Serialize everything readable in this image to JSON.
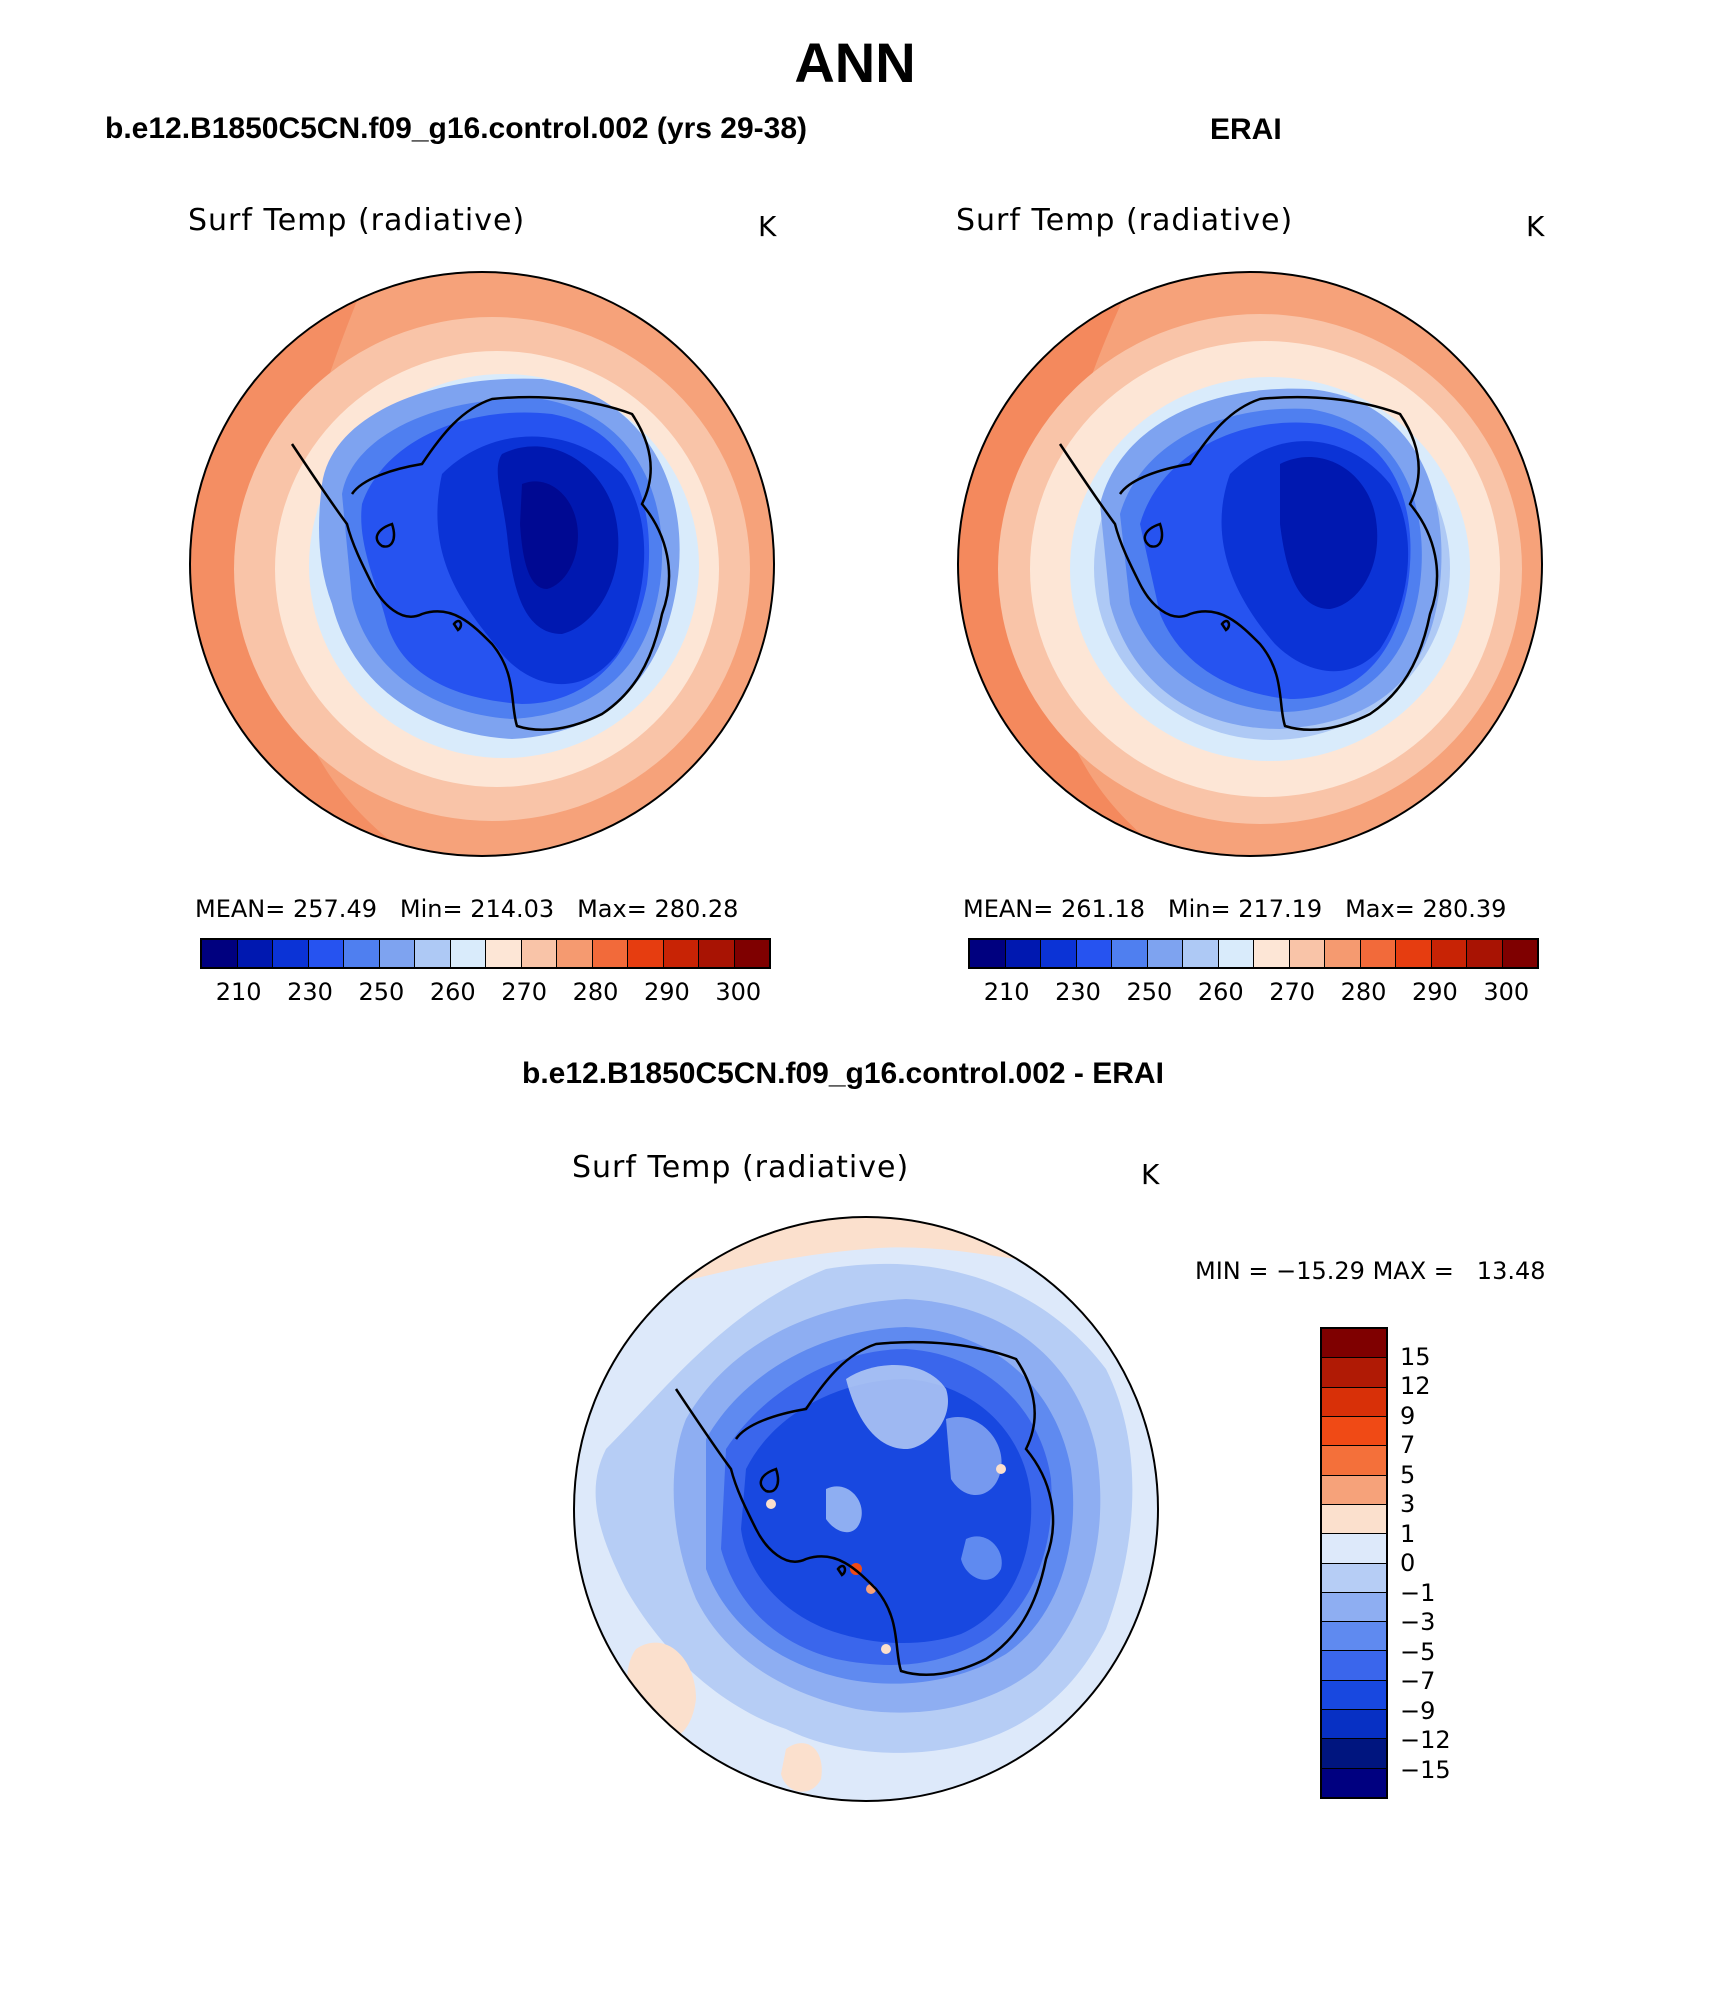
{
  "figure": {
    "season": "ANN",
    "panels": {
      "model": {
        "case_title": "b.e12.B1850C5CN.f09_g16.control.002 (yrs 29-38)",
        "variable": "Surf Temp (radiative)",
        "units": "K",
        "stats": {
          "mean_label": "MEAN=",
          "mean": "257.49",
          "min_label": "Min=",
          "min": "214.03",
          "max_label": "Max=",
          "max": "280.28"
        }
      },
      "obs": {
        "case_title": "ERAI",
        "variable": "Surf Temp (radiative)",
        "units": "K",
        "stats": {
          "mean_label": "MEAN=",
          "mean": "261.18",
          "min_label": "Min=",
          "min": "217.19",
          "max_label": "Max=",
          "max": "280.39"
        }
      },
      "diff": {
        "case_title": "b.e12.B1850C5CN.f09_g16.control.002 - ERAI",
        "variable": "Surf Temp (radiative)",
        "units": "K",
        "stats": {
          "min_label": "MIN =",
          "min": "−15.29",
          "max_label": "MAX =",
          "max": "13.48"
        }
      }
    },
    "abs_colorbar": {
      "colors": [
        "#00007f",
        "#0018b0",
        "#0b33d6",
        "#2653f0",
        "#4f7ff0",
        "#7ea3f0",
        "#aec9f5",
        "#d9ebfb",
        "#fde6d6",
        "#f9c4a8",
        "#f59a70",
        "#f26a3a",
        "#e63d10",
        "#c82305",
        "#a81303",
        "#7f0000"
      ],
      "tick_labels": [
        "210",
        "230",
        "250",
        "260",
        "270",
        "280",
        "290",
        "300"
      ]
    },
    "diff_colorbar": {
      "colors": [
        "#7f0000",
        "#b01a05",
        "#d83008",
        "#f04a15",
        "#f4703a",
        "#f6a27a",
        "#fbe0cd",
        "#dde9fa",
        "#b6cdf5",
        "#8eaef2",
        "#5f8af0",
        "#3a66ec",
        "#1848e0",
        "#0730c4",
        "#00157f",
        "#000080"
      ],
      "tick_labels": [
        "15",
        "12",
        "9",
        "7",
        "5",
        "3",
        "1",
        "0",
        "−1",
        "−3",
        "−5",
        "−7",
        "−9",
        "−12",
        "−15"
      ]
    }
  }
}
